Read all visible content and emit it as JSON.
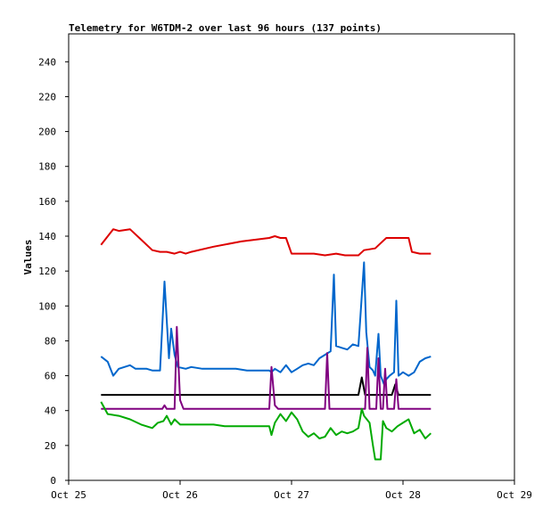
{
  "chart_data": {
    "type": "line",
    "title": "Telemetry for W6TDM-2 over last 96 hours (137 points)",
    "xlabel": "",
    "ylabel": "Values",
    "ylim": [
      0,
      256
    ],
    "xlim": [
      0,
      4
    ],
    "x_ticks": [
      {
        "x": 0,
        "label": "Oct 25"
      },
      {
        "x": 1,
        "label": "Oct 26"
      },
      {
        "x": 2,
        "label": "Oct 27"
      },
      {
        "x": 3,
        "label": "Oct 28"
      },
      {
        "x": 4,
        "label": "Oct 29"
      }
    ],
    "y_ticks": [
      0,
      20,
      40,
      60,
      80,
      100,
      120,
      140,
      160,
      180,
      200,
      220,
      240
    ],
    "grid": false,
    "legend": "none",
    "series": [
      {
        "color": "#dd0000",
        "points": [
          [
            0.29,
            135
          ],
          [
            0.4,
            144
          ],
          [
            0.45,
            143
          ],
          [
            0.55,
            144
          ],
          [
            0.65,
            138
          ],
          [
            0.75,
            132
          ],
          [
            0.82,
            131
          ],
          [
            0.88,
            131
          ],
          [
            0.95,
            130
          ],
          [
            1.0,
            131
          ],
          [
            1.05,
            130
          ],
          [
            1.1,
            131
          ],
          [
            1.3,
            134
          ],
          [
            1.55,
            137
          ],
          [
            1.8,
            139
          ],
          [
            1.85,
            140
          ],
          [
            1.9,
            139
          ],
          [
            1.95,
            139
          ],
          [
            2.0,
            130
          ],
          [
            2.1,
            130
          ],
          [
            2.2,
            130
          ],
          [
            2.3,
            129
          ],
          [
            2.4,
            130
          ],
          [
            2.48,
            129
          ],
          [
            2.55,
            129
          ],
          [
            2.6,
            129
          ],
          [
            2.65,
            132
          ],
          [
            2.75,
            133
          ],
          [
            2.8,
            136
          ],
          [
            2.85,
            139
          ],
          [
            2.95,
            139
          ],
          [
            3.0,
            139
          ],
          [
            3.05,
            139
          ],
          [
            3.08,
            131
          ],
          [
            3.15,
            130
          ],
          [
            3.25,
            130
          ]
        ]
      },
      {
        "color": "#0066cc",
        "points": [
          [
            0.29,
            71
          ],
          [
            0.35,
            68
          ],
          [
            0.4,
            60
          ],
          [
            0.45,
            64
          ],
          [
            0.55,
            66
          ],
          [
            0.6,
            64
          ],
          [
            0.7,
            64
          ],
          [
            0.75,
            63
          ],
          [
            0.82,
            63
          ],
          [
            0.86,
            114
          ],
          [
            0.9,
            70
          ],
          [
            0.92,
            87
          ],
          [
            0.95,
            72
          ],
          [
            0.98,
            65
          ],
          [
            1.05,
            64
          ],
          [
            1.1,
            65
          ],
          [
            1.2,
            64
          ],
          [
            1.3,
            64
          ],
          [
            1.4,
            64
          ],
          [
            1.5,
            64
          ],
          [
            1.6,
            63
          ],
          [
            1.7,
            63
          ],
          [
            1.8,
            63
          ],
          [
            1.82,
            62
          ],
          [
            1.85,
            64
          ],
          [
            1.9,
            62
          ],
          [
            1.95,
            66
          ],
          [
            2.0,
            62
          ],
          [
            2.05,
            64
          ],
          [
            2.1,
            66
          ],
          [
            2.15,
            67
          ],
          [
            2.2,
            66
          ],
          [
            2.25,
            70
          ],
          [
            2.3,
            72
          ],
          [
            2.35,
            74
          ],
          [
            2.38,
            118
          ],
          [
            2.4,
            77
          ],
          [
            2.45,
            76
          ],
          [
            2.5,
            75
          ],
          [
            2.55,
            78
          ],
          [
            2.6,
            77
          ],
          [
            2.65,
            125
          ],
          [
            2.67,
            85
          ],
          [
            2.7,
            65
          ],
          [
            2.73,
            63
          ],
          [
            2.75,
            60
          ],
          [
            2.78,
            84
          ],
          [
            2.8,
            60
          ],
          [
            2.83,
            55
          ],
          [
            2.85,
            58
          ],
          [
            2.88,
            60
          ],
          [
            2.92,
            62
          ],
          [
            2.94,
            103
          ],
          [
            2.96,
            60
          ],
          [
            3.0,
            62
          ],
          [
            3.05,
            60
          ],
          [
            3.1,
            62
          ],
          [
            3.15,
            68
          ],
          [
            3.2,
            70
          ],
          [
            3.25,
            71
          ]
        ]
      },
      {
        "color": "#000000",
        "points": [
          [
            0.29,
            49
          ],
          [
            2.6,
            49
          ],
          [
            2.63,
            59
          ],
          [
            2.66,
            49
          ],
          [
            2.9,
            49
          ],
          [
            2.93,
            55
          ],
          [
            2.96,
            49
          ],
          [
            3.25,
            49
          ]
        ]
      },
      {
        "color": "#800080",
        "points": [
          [
            0.29,
            41
          ],
          [
            0.84,
            41
          ],
          [
            0.86,
            43
          ],
          [
            0.88,
            41
          ],
          [
            0.95,
            41
          ],
          [
            0.97,
            88
          ],
          [
            1.0,
            46
          ],
          [
            1.03,
            41
          ],
          [
            1.8,
            41
          ],
          [
            1.82,
            65
          ],
          [
            1.85,
            43
          ],
          [
            1.88,
            41
          ],
          [
            2.3,
            41
          ],
          [
            2.32,
            73
          ],
          [
            2.34,
            41
          ],
          [
            2.66,
            41
          ],
          [
            2.68,
            76
          ],
          [
            2.7,
            41
          ],
          [
            2.76,
            41
          ],
          [
            2.78,
            70
          ],
          [
            2.8,
            41
          ],
          [
            2.82,
            41
          ],
          [
            2.84,
            64
          ],
          [
            2.86,
            41
          ],
          [
            2.92,
            41
          ],
          [
            2.94,
            58
          ],
          [
            2.96,
            41
          ],
          [
            3.25,
            41
          ]
        ]
      },
      {
        "color": "#00aa00",
        "points": [
          [
            0.29,
            45
          ],
          [
            0.35,
            38
          ],
          [
            0.45,
            37
          ],
          [
            0.55,
            35
          ],
          [
            0.65,
            32
          ],
          [
            0.75,
            30
          ],
          [
            0.8,
            33
          ],
          [
            0.85,
            34
          ],
          [
            0.88,
            37
          ],
          [
            0.92,
            32
          ],
          [
            0.95,
            35
          ],
          [
            1.0,
            32
          ],
          [
            1.1,
            32
          ],
          [
            1.2,
            32
          ],
          [
            1.3,
            32
          ],
          [
            1.4,
            31
          ],
          [
            1.5,
            31
          ],
          [
            1.6,
            31
          ],
          [
            1.7,
            31
          ],
          [
            1.8,
            31
          ],
          [
            1.82,
            26
          ],
          [
            1.85,
            33
          ],
          [
            1.9,
            38
          ],
          [
            1.95,
            34
          ],
          [
            2.0,
            39
          ],
          [
            2.05,
            35
          ],
          [
            2.1,
            28
          ],
          [
            2.15,
            25
          ],
          [
            2.2,
            27
          ],
          [
            2.25,
            24
          ],
          [
            2.3,
            25
          ],
          [
            2.35,
            30
          ],
          [
            2.4,
            26
          ],
          [
            2.45,
            28
          ],
          [
            2.5,
            27
          ],
          [
            2.55,
            28
          ],
          [
            2.6,
            30
          ],
          [
            2.63,
            41
          ],
          [
            2.65,
            37
          ],
          [
            2.7,
            33
          ],
          [
            2.73,
            20
          ],
          [
            2.75,
            12
          ],
          [
            2.8,
            12
          ],
          [
            2.82,
            34
          ],
          [
            2.85,
            30
          ],
          [
            2.9,
            28
          ],
          [
            2.95,
            31
          ],
          [
            3.0,
            33
          ],
          [
            3.05,
            35
          ],
          [
            3.1,
            27
          ],
          [
            3.15,
            29
          ],
          [
            3.2,
            24
          ],
          [
            3.25,
            27
          ]
        ]
      }
    ]
  }
}
